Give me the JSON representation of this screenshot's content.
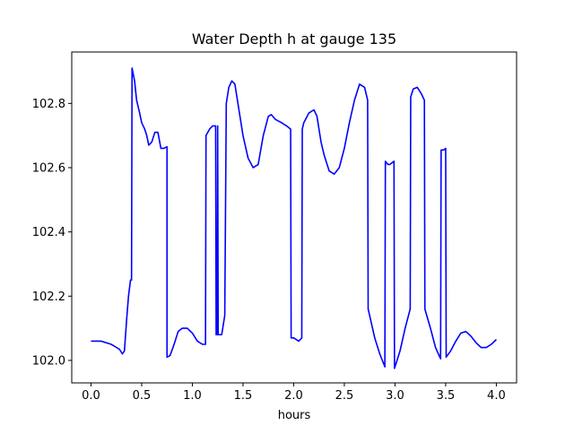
{
  "chart_data": {
    "type": "line",
    "title": "Water Depth h at gauge 135",
    "xlabel": "hours",
    "ylabel": "",
    "xlim": [
      -0.19,
      4.2
    ],
    "ylim": [
      101.93,
      102.96
    ],
    "x_ticks": [
      0.0,
      0.5,
      1.0,
      1.5,
      2.0,
      2.5,
      3.0,
      3.5,
      4.0
    ],
    "x_tick_labels": [
      "0.0",
      "0.5",
      "1.0",
      "1.5",
      "2.0",
      "2.5",
      "3.0",
      "3.5",
      "4.0"
    ],
    "y_ticks": [
      102.0,
      102.2,
      102.4,
      102.6,
      102.8
    ],
    "y_tick_labels": [
      "102.0",
      "102.2",
      "102.4",
      "102.6",
      "102.8"
    ],
    "grid": false,
    "legend": "none",
    "series": [
      {
        "color": "#0000ff",
        "points": [
          [
            0.0,
            102.06
          ],
          [
            0.1,
            102.06
          ],
          [
            0.2,
            102.05
          ],
          [
            0.28,
            102.035
          ],
          [
            0.31,
            102.02
          ],
          [
            0.33,
            102.03
          ],
          [
            0.35,
            102.12
          ],
          [
            0.37,
            102.2
          ],
          [
            0.39,
            102.25
          ],
          [
            0.4,
            102.25
          ],
          [
            0.405,
            102.91
          ],
          [
            0.43,
            102.87
          ],
          [
            0.45,
            102.81
          ],
          [
            0.48,
            102.77
          ],
          [
            0.5,
            102.74
          ],
          [
            0.53,
            102.72
          ],
          [
            0.55,
            102.7
          ],
          [
            0.57,
            102.67
          ],
          [
            0.6,
            102.68
          ],
          [
            0.63,
            102.71
          ],
          [
            0.66,
            102.71
          ],
          [
            0.69,
            102.66
          ],
          [
            0.72,
            102.66
          ],
          [
            0.75,
            102.665
          ],
          [
            0.75,
            102.01
          ],
          [
            0.78,
            102.015
          ],
          [
            0.82,
            102.05
          ],
          [
            0.86,
            102.09
          ],
          [
            0.9,
            102.1
          ],
          [
            0.95,
            102.1
          ],
          [
            1.0,
            102.085
          ],
          [
            1.05,
            102.06
          ],
          [
            1.1,
            102.05
          ],
          [
            1.13,
            102.05
          ],
          [
            1.135,
            102.7
          ],
          [
            1.17,
            102.72
          ],
          [
            1.2,
            102.73
          ],
          [
            1.23,
            102.73
          ],
          [
            1.235,
            102.08
          ],
          [
            1.245,
            102.08
          ],
          [
            1.25,
            102.73
          ],
          [
            1.255,
            102.08
          ],
          [
            1.29,
            102.08
          ],
          [
            1.32,
            102.14
          ],
          [
            1.335,
            102.8
          ],
          [
            1.36,
            102.85
          ],
          [
            1.39,
            102.87
          ],
          [
            1.42,
            102.86
          ],
          [
            1.46,
            102.78
          ],
          [
            1.5,
            102.7
          ],
          [
            1.55,
            102.63
          ],
          [
            1.6,
            102.6
          ],
          [
            1.65,
            102.61
          ],
          [
            1.7,
            102.7
          ],
          [
            1.75,
            102.76
          ],
          [
            1.78,
            102.765
          ],
          [
            1.82,
            102.75
          ],
          [
            1.88,
            102.74
          ],
          [
            1.93,
            102.73
          ],
          [
            1.97,
            102.72
          ],
          [
            1.975,
            102.07
          ],
          [
            2.0,
            102.07
          ],
          [
            2.05,
            102.06
          ],
          [
            2.08,
            102.07
          ],
          [
            2.085,
            102.72
          ],
          [
            2.1,
            102.74
          ],
          [
            2.15,
            102.77
          ],
          [
            2.2,
            102.78
          ],
          [
            2.23,
            102.76
          ],
          [
            2.25,
            102.72
          ],
          [
            2.27,
            102.68
          ],
          [
            2.3,
            102.64
          ],
          [
            2.35,
            102.59
          ],
          [
            2.4,
            102.58
          ],
          [
            2.45,
            102.6
          ],
          [
            2.5,
            102.66
          ],
          [
            2.55,
            102.74
          ],
          [
            2.6,
            102.81
          ],
          [
            2.65,
            102.86
          ],
          [
            2.7,
            102.85
          ],
          [
            2.73,
            102.81
          ],
          [
            2.735,
            102.16
          ],
          [
            2.8,
            102.07
          ],
          [
            2.85,
            102.02
          ],
          [
            2.9,
            101.98
          ],
          [
            2.905,
            102.62
          ],
          [
            2.93,
            102.61
          ],
          [
            2.95,
            102.61
          ],
          [
            2.99,
            102.62
          ],
          [
            2.995,
            101.975
          ],
          [
            3.05,
            102.03
          ],
          [
            3.1,
            102.1
          ],
          [
            3.15,
            102.16
          ],
          [
            3.155,
            102.82
          ],
          [
            3.18,
            102.845
          ],
          [
            3.22,
            102.85
          ],
          [
            3.26,
            102.83
          ],
          [
            3.29,
            102.81
          ],
          [
            3.295,
            102.16
          ],
          [
            3.35,
            102.1
          ],
          [
            3.4,
            102.04
          ],
          [
            3.45,
            102.005
          ],
          [
            3.455,
            102.655
          ],
          [
            3.48,
            102.655
          ],
          [
            3.5,
            102.66
          ],
          [
            3.505,
            102.01
          ],
          [
            3.55,
            102.03
          ],
          [
            3.6,
            102.06
          ],
          [
            3.65,
            102.085
          ],
          [
            3.7,
            102.09
          ],
          [
            3.75,
            102.075
          ],
          [
            3.8,
            102.055
          ],
          [
            3.85,
            102.04
          ],
          [
            3.9,
            102.04
          ],
          [
            3.95,
            102.05
          ],
          [
            4.0,
            102.065
          ]
        ]
      }
    ]
  }
}
